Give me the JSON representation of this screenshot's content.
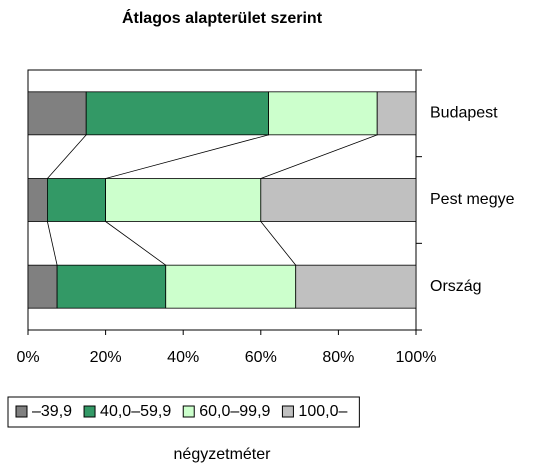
{
  "chart_data": {
    "type": "stacked_barh",
    "title": "Átlagos alapterület szerint",
    "legend_title": "négyzetméter",
    "categories": [
      "Budapest",
      "Pest megye",
      "Ország"
    ],
    "series": [
      {
        "name": "–39,9",
        "color": "#808080",
        "values": [
          15,
          5,
          7.5
        ]
      },
      {
        "name": "40,0–59,9",
        "color": "#339966",
        "values": [
          47,
          15,
          28
        ]
      },
      {
        "name": "60,0–99,9",
        "color": "#ccffcc",
        "values": [
          28,
          40,
          33.5
        ]
      },
      {
        "name": "100,0–",
        "color": "#c0c0c0",
        "values": [
          10,
          40,
          31
        ]
      }
    ],
    "xlim": [
      0,
      100
    ],
    "xticks": [
      {
        "value": 0,
        "label": "0%"
      },
      {
        "value": 20,
        "label": "20%"
      },
      {
        "value": 40,
        "label": "40%"
      },
      {
        "value": 60,
        "label": "60%"
      },
      {
        "value": 80,
        "label": "80%"
      },
      {
        "value": 100,
        "label": "100%"
      }
    ],
    "legend": "bottom"
  }
}
